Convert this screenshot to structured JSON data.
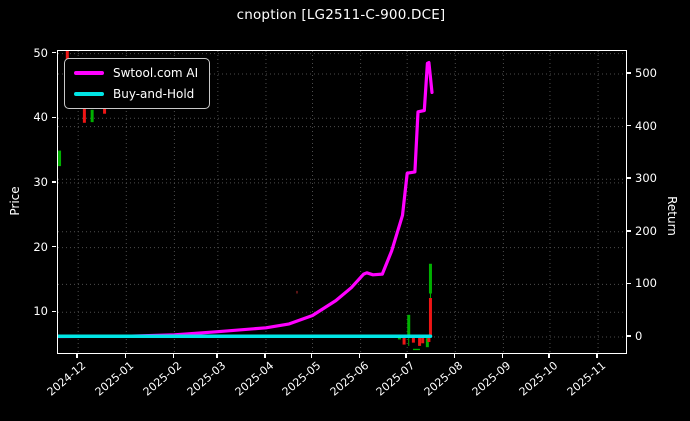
{
  "title": "cnoption [LG2511-C-900.DCE]",
  "legend": [
    {
      "label": "Swtool.com AI",
      "color": "#ff00ff"
    },
    {
      "label": "Buy-and-Hold",
      "color": "#00e5e5"
    }
  ],
  "colors": {
    "background": "#000000",
    "foreground": "#ffffff",
    "grid": "#4d4d4d",
    "candle_up": "#00b000",
    "candle_down": "#ee1515",
    "ai_line": "#ff00ff",
    "buyhold_line": "#00e5e5"
  },
  "chart_data": {
    "type": "line+candlestick",
    "title": "cnoption [LG2511-C-900.DCE]",
    "grid": "dotted",
    "legend_position": "upper-left",
    "x_domain": [
      "2024-11-18",
      "2025-11-19"
    ],
    "x_ticks": [
      {
        "date": "2024-12-01",
        "label": "2024-12"
      },
      {
        "date": "2025-01-01",
        "label": "2025-01"
      },
      {
        "date": "2025-02-01",
        "label": "2025-02"
      },
      {
        "date": "2025-03-01",
        "label": "2025-03"
      },
      {
        "date": "2025-04-01",
        "label": "2025-04"
      },
      {
        "date": "2025-05-01",
        "label": "2025-05"
      },
      {
        "date": "2025-06-01",
        "label": "2025-06"
      },
      {
        "date": "2025-07-01",
        "label": "2025-07"
      },
      {
        "date": "2025-08-01",
        "label": "2025-08"
      },
      {
        "date": "2025-09-01",
        "label": "2025-09"
      },
      {
        "date": "2025-10-01",
        "label": "2025-10"
      },
      {
        "date": "2025-11-01",
        "label": "2025-11"
      }
    ],
    "left_axis": {
      "label": "Price",
      "range": [
        3.7,
        50.4
      ],
      "ticks": [
        10,
        20,
        30,
        40,
        50
      ]
    },
    "right_axis": {
      "label": "Return",
      "range": [
        -30.4,
        543.7
      ],
      "ticks": [
        0,
        100,
        200,
        300,
        400,
        500
      ]
    },
    "series": [
      {
        "name": "Swtool.com AI",
        "axis": "left",
        "color": "#ff00ff",
        "width": 3.2,
        "points": [
          [
            "2024-11-18",
            6.25
          ],
          [
            "2025-01-01",
            6.3
          ],
          [
            "2025-02-01",
            6.5
          ],
          [
            "2025-03-01",
            7.0
          ],
          [
            "2025-04-01",
            7.6
          ],
          [
            "2025-04-16",
            8.2
          ],
          [
            "2025-05-01",
            9.5
          ],
          [
            "2025-05-16",
            11.8
          ],
          [
            "2025-05-26",
            13.8
          ],
          [
            "2025-06-03",
            15.9
          ],
          [
            "2025-06-05",
            16.1
          ],
          [
            "2025-06-09",
            15.8
          ],
          [
            "2025-06-15",
            15.9
          ],
          [
            "2025-06-21",
            19.5
          ],
          [
            "2025-06-28",
            25.0
          ],
          [
            "2025-07-01",
            31.5
          ],
          [
            "2025-07-06",
            31.7
          ],
          [
            "2025-07-08",
            41.0
          ],
          [
            "2025-07-12",
            41.2
          ],
          [
            "2025-07-14",
            48.5
          ],
          [
            "2025-07-15",
            48.6
          ],
          [
            "2025-07-17",
            44.0
          ]
        ]
      },
      {
        "name": "Buy-and-Hold",
        "axis": "left",
        "color": "#00e5e5",
        "width": 3.5,
        "points": [
          [
            "2024-11-18",
            6.3
          ],
          [
            "2025-07-16",
            6.3
          ]
        ]
      }
    ],
    "candles": [
      {
        "date": "2024-11-19",
        "low": 32.6,
        "high": 35.0,
        "dir": "up"
      },
      {
        "date": "2024-11-24",
        "low": 48.8,
        "high": 50.45,
        "dir": "down"
      },
      {
        "date": "2024-12-05",
        "low": 39.3,
        "high": 42.3,
        "dir": "down"
      },
      {
        "date": "2024-12-10",
        "low": 39.4,
        "high": 41.3,
        "dir": "up"
      },
      {
        "date": "2024-12-18",
        "low": 40.7,
        "high": 42.1,
        "dir": "down"
      },
      {
        "date": "2025-04-21",
        "low": 12.9,
        "high": 13.3,
        "color": "#5a1515",
        "w": 2
      },
      {
        "date": "2025-06-26",
        "low": 5.8,
        "high": 6.5,
        "dir": "up"
      },
      {
        "date": "2025-06-29",
        "low": 5.0,
        "high": 6.2,
        "dir": "down"
      },
      {
        "date": "2025-07-02",
        "low": 6.4,
        "high": 9.6,
        "dir": "up",
        "wick_low": 4.8
      },
      {
        "date": "2025-07-05",
        "low": 5.3,
        "high": 6.2,
        "dir": "down"
      },
      {
        "date": "2025-07-07",
        "low": 4.15,
        "high": 4.35,
        "dir": "up",
        "w": 7
      },
      {
        "date": "2025-07-09",
        "low": 4.8,
        "high": 6.1,
        "dir": "down"
      },
      {
        "date": "2025-07-11",
        "low": 5.2,
        "high": 6.2,
        "dir": "down"
      },
      {
        "date": "2025-07-14",
        "low": 4.6,
        "high": 6.0,
        "dir": "up"
      },
      {
        "date": "2025-07-15",
        "low": 5.4,
        "high": 6.2,
        "dir": "down"
      },
      {
        "date": "2025-07-16",
        "low": 12.9,
        "high": 17.5,
        "dir": "up",
        "wick_low": 12.2
      },
      {
        "date": "2025-07-16",
        "low": 6.2,
        "high": 12.2,
        "dir": "down"
      }
    ]
  }
}
